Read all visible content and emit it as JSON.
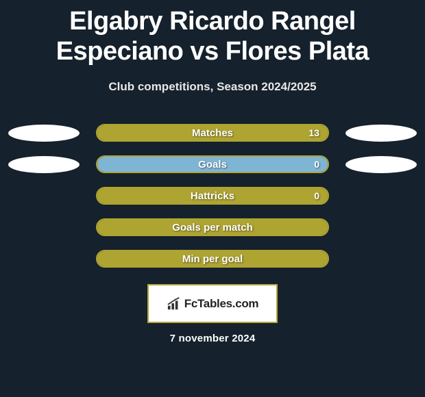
{
  "title": "Elgabry Ricardo Rangel Especiano vs Flores Plata",
  "subtitle": "Club competitions, Season 2024/2025",
  "date": "7 november 2024",
  "colors": {
    "background": "#15212c",
    "bar_olive": "#aea432",
    "bar_olive_border": "#b5ab36",
    "bar_blue": "#7fb5d4",
    "text": "#ffffff",
    "badge": "#ffffff"
  },
  "rows": [
    {
      "label": "Matches",
      "value": "13",
      "left_badge": true,
      "right_badge": true,
      "fill_color": "#aea432",
      "border_color": "#aea432",
      "fill_percent": 100
    },
    {
      "label": "Goals",
      "value": "0",
      "left_badge": true,
      "right_badge": true,
      "fill_color": "#7fb5d4",
      "border_color": "#aea432",
      "fill_percent": 100
    },
    {
      "label": "Hattricks",
      "value": "0",
      "left_badge": false,
      "right_badge": false,
      "fill_color": "#aea432",
      "border_color": "#aea432",
      "fill_percent": 100
    },
    {
      "label": "Goals per match",
      "value": "",
      "left_badge": false,
      "right_badge": false,
      "fill_color": "#aea432",
      "border_color": "#aea432",
      "fill_percent": 100
    },
    {
      "label": "Min per goal",
      "value": "",
      "left_badge": false,
      "right_badge": false,
      "fill_color": "#aea432",
      "border_color": "#aea432",
      "fill_percent": 100
    }
  ],
  "logo": {
    "text": "FcTables.com"
  }
}
